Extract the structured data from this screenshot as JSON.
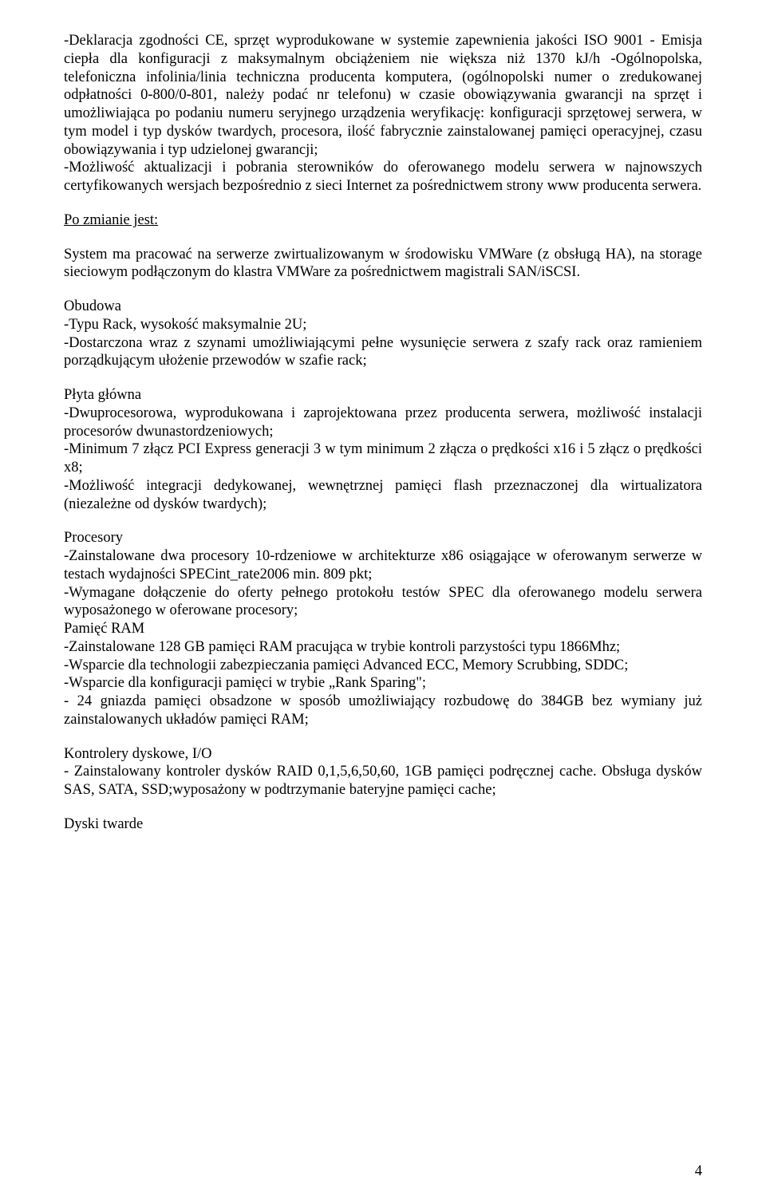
{
  "paragraphs": {
    "p1": "-Deklaracja zgodności CE, sprzęt wyprodukowane w systemie zapewnienia jakości ISO 9001 - Emisja ciepła dla konfiguracji z maksymalnym obciążeniem nie większa niż 1370 kJ/h -Ogólnopolska, telefoniczna infolinia/linia techniczna producenta komputera, (ogólnopolski numer o zredukowanej odpłatności 0-800/0-801, należy podać nr telefonu) w czasie obowiązywania gwarancji na sprzęt i umożliwiająca po podaniu numeru seryjnego urządzenia weryfikację: konfiguracji sprzętowej serwera, w tym model i typ dysków twardych, procesora, ilość fabrycznie zainstalowanej pamięci operacyjnej, czasu obowiązywania i typ udzielonej gwarancji;",
    "p1b": "-Możliwość aktualizacji i pobrania sterowników do oferowanego modelu serwera w najnowszych certyfikowanych wersjach bezpośrednio z sieci Internet za pośrednictwem strony www producenta serwera.",
    "po_zmianie": "Po zmianie jest:",
    "p2": "System ma pracować na serwerze zwirtualizowanym w środowisku VMWare (z obsługą HA), na storage sieciowym podłączonym do klastra VMWare za pośrednictwem magistrali SAN/iSCSI.",
    "obudowa_heading": "Obudowa",
    "obudowa_body": "-Typu Rack, wysokość maksymalnie 2U;\n-Dostarczona wraz z szynami umożliwiającymi pełne wysunięcie serwera z szafy rack oraz ramieniem porządkującym ułożenie przewodów w szafie rack;",
    "plyta_heading": "Płyta główna",
    "plyta_body": "-Dwuprocesorowa, wyprodukowana i zaprojektowana przez producenta serwera, możliwość instalacji procesorów dwunastordzeniowych;\n-Minimum 7 złącz PCI Express generacji 3 w tym minimum 2 złącza o prędkości x16 i 5 złącz o prędkości x8;\n-Możliwość integracji dedykowanej, wewnętrznej pamięci flash przeznaczonej dla wirtualizatora (niezależne od dysków twardych);",
    "procesory_heading": "Procesory",
    "procesory_body": "-Zainstalowane dwa procesory 10-rdzeniowe w architekturze x86 osiągające w oferowanym serwerze w testach wydajności SPECint_rate2006 min. 809 pkt;\n-Wymagane dołączenie do oferty pełnego protokołu testów SPEC dla oferowanego modelu serwera wyposażonego w oferowane procesory;\nPamięć RAM\n-Zainstalowane 128 GB pamięci RAM pracująca w trybie kontroli parzystości typu 1866Mhz;\n-Wsparcie dla technologii zabezpieczania pamięci Advanced ECC, Memory Scrubbing, SDDC;\n-Wsparcie dla konfiguracji pamięci w trybie „Rank Sparing\";\n- 24 gniazda pamięci obsadzone w sposób umożliwiający rozbudowę do 384GB bez wymiany już zainstalowanych układów pamięci RAM;",
    "kontrolery_heading": "Kontrolery dyskowe, I/O",
    "kontrolery_body": "- Zainstalowany kontroler dysków RAID 0,1,5,6,50,60, 1GB pamięci podręcznej cache. Obsługa dysków SAS, SATA, SSD;wyposażony w podtrzymanie bateryjne pamięci cache;",
    "dyski_heading": "Dyski twarde"
  },
  "page_number": "4"
}
